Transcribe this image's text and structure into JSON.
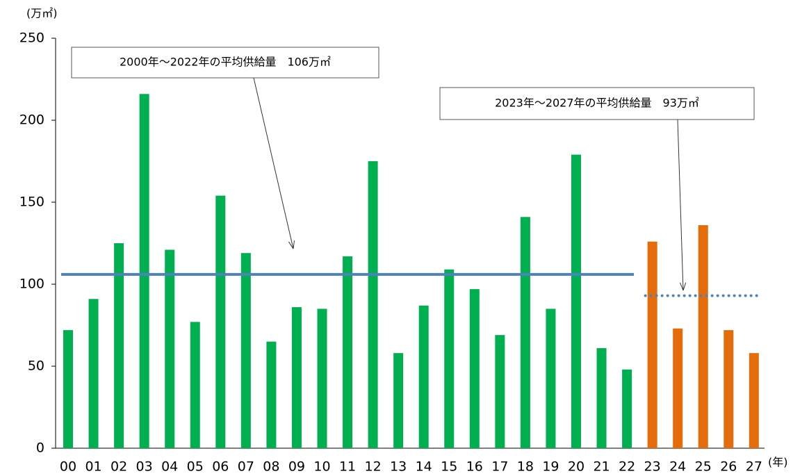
{
  "chart_data": {
    "type": "bar",
    "y_label": "(万㎡)",
    "x_label": "(年)",
    "categories": [
      "00",
      "01",
      "02",
      "03",
      "04",
      "05",
      "06",
      "07",
      "08",
      "09",
      "10",
      "11",
      "12",
      "13",
      "14",
      "15",
      "16",
      "17",
      "18",
      "19",
      "20",
      "21",
      "22",
      "23",
      "24",
      "25",
      "26",
      "27"
    ],
    "values": [
      72,
      91,
      125,
      216,
      121,
      77,
      154,
      119,
      65,
      86,
      85,
      117,
      175,
      58,
      87,
      109,
      97,
      69,
      141,
      85,
      179,
      61,
      48,
      126,
      73,
      136,
      72,
      58
    ],
    "colors": [
      "#00b050",
      "#00b050",
      "#00b050",
      "#00b050",
      "#00b050",
      "#00b050",
      "#00b050",
      "#00b050",
      "#00b050",
      "#00b050",
      "#00b050",
      "#00b050",
      "#00b050",
      "#00b050",
      "#00b050",
      "#00b050",
      "#00b050",
      "#00b050",
      "#00b050",
      "#00b050",
      "#00b050",
      "#00b050",
      "#00b050",
      "#e46c0a",
      "#e46c0a",
      "#e46c0a",
      "#e46c0a",
      "#e46c0a"
    ],
    "ylim": [
      0,
      250
    ],
    "yticks": [
      0,
      50,
      100,
      150,
      200,
      250
    ],
    "grid": false,
    "reference_lines": [
      {
        "value": 106,
        "label": "2000年～2022年の平均供給量　106万㎡",
        "style": "solid",
        "color": "#4f81bd"
      },
      {
        "value": 93,
        "label": "2023年～2027年の平均供給量　93万㎡",
        "style": "dotted",
        "color": "#4f81bd"
      }
    ]
  }
}
